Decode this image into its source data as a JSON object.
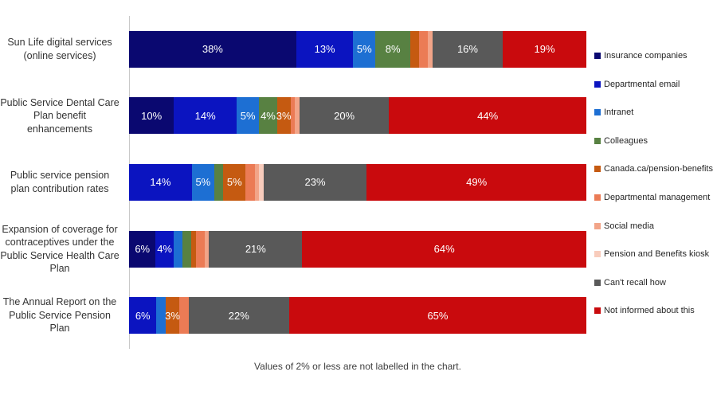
{
  "chart_data": {
    "type": "bar",
    "variant": "horizontal-stacked-percent",
    "title": "",
    "caption": "Values of 2% or less are not labelled in the chart.",
    "legend_position": "right",
    "label_min_value_shown": 3,
    "axis_color": "#c9c9c9",
    "categories": [
      "Sun Life digital services (online services)",
      "Public Service Dental Care Plan benefit enhancements",
      "Public service pension plan contribution rates",
      "Expansion of coverage for contraceptives under the Public Service Health Care Plan",
      "The Annual Report on the Public Service Pension Plan"
    ],
    "series": [
      {
        "name": "Insurance companies",
        "color": "#0a0870",
        "values": [
          38,
          10,
          0,
          6,
          0
        ]
      },
      {
        "name": "Departmental email",
        "color": "#0b14c0",
        "values": [
          13,
          14,
          14,
          4,
          6
        ]
      },
      {
        "name": "Intranet",
        "color": "#1d6fd3",
        "values": [
          5,
          5,
          5,
          2,
          2
        ]
      },
      {
        "name": "Colleagues",
        "color": "#588142",
        "values": [
          8,
          4,
          2,
          2,
          0
        ]
      },
      {
        "name": "Canada.ca/pension-benefits",
        "color": "#c55a11",
        "values": [
          2,
          3,
          5,
          1,
          3
        ]
      },
      {
        "name": "Departmental management",
        "color": "#eb7b55",
        "values": [
          2,
          1,
          2,
          2,
          2
        ]
      },
      {
        "name": "Social media",
        "color": "#f2a488",
        "values": [
          1,
          1,
          1,
          1,
          0
        ]
      },
      {
        "name": "Pension and Benefits kiosk",
        "color": "#f8ccbc",
        "values": [
          0,
          0,
          1,
          0,
          0
        ]
      },
      {
        "name": "Can't recall how",
        "color": "#595959",
        "values": [
          16,
          20,
          23,
          21,
          22
        ]
      },
      {
        "name": "Not informed about this",
        "color": "#c90a0d",
        "values": [
          19,
          44,
          49,
          64,
          65
        ]
      }
    ]
  }
}
